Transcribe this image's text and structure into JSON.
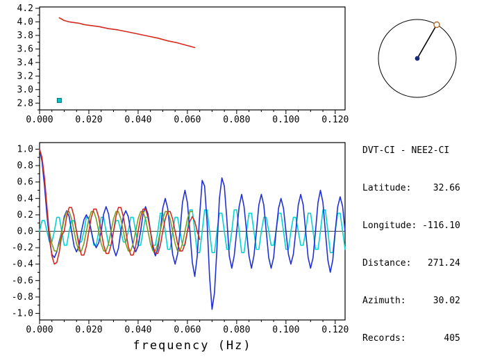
{
  "info": {
    "title": "DVT-CI - NEE2-CI",
    "lines": [
      "Latitude:    32.66",
      "Longitude: -116.10",
      "Distance:   271.24",
      "Azimuth:     30.02",
      "Records:       405"
    ]
  },
  "compass": {
    "azimuth_deg": 30.02,
    "circle_color": "#000000",
    "line_color": "#000000",
    "center_dot_color": "#1a2a7a",
    "edge_marker_color": "#b06820"
  },
  "chart_data": [
    {
      "id": "dispersion",
      "type": "line",
      "title": "",
      "xlabel": "",
      "ylabel": "",
      "xlim": [
        0,
        0.124
      ],
      "ylim": [
        2.7,
        4.22
      ],
      "xticks": [
        0,
        0.02,
        0.04,
        0.06,
        0.08,
        0.1,
        0.12
      ],
      "xtick_labels": [
        "0.000",
        "0.020",
        "0.040",
        "0.060",
        "0.080",
        "0.100",
        "0.120"
      ],
      "xminor_step": 0.005,
      "yticks": [
        2.8,
        3.0,
        3.2,
        3.4,
        3.6,
        3.8,
        4.0,
        4.2
      ],
      "ytick_labels": [
        "2.8",
        "3.0",
        "3.2",
        "3.4",
        "3.6",
        "3.8",
        "4.0",
        "4.2"
      ],
      "yminor_step": 0.1,
      "grid": false,
      "zero_line": false,
      "series": [
        {
          "name": "group-velocity-curve",
          "color": "#d42a1e",
          "x": [
            0.008,
            0.009,
            0.01,
            0.012,
            0.014,
            0.016,
            0.018,
            0.02,
            0.024,
            0.028,
            0.032,
            0.036,
            0.04,
            0.044,
            0.048,
            0.052,
            0.056,
            0.06,
            0.063
          ],
          "y": [
            4.06,
            4.04,
            4.02,
            4.0,
            3.99,
            3.98,
            3.96,
            3.95,
            3.93,
            3.9,
            3.88,
            3.85,
            3.82,
            3.79,
            3.76,
            3.72,
            3.69,
            3.65,
            3.62
          ]
        }
      ],
      "markers": [
        {
          "name": "picked-point",
          "shape": "square",
          "x": 0.008,
          "y": 2.84,
          "color": "#00c8c8",
          "edge": "#006868"
        }
      ]
    },
    {
      "id": "correlation",
      "type": "line",
      "title": "",
      "xlabel": "frequency (Hz)",
      "ylabel": "",
      "xlim": [
        0,
        0.124
      ],
      "ylim": [
        -1.08,
        1.08
      ],
      "xticks": [
        0,
        0.02,
        0.04,
        0.06,
        0.08,
        0.1,
        0.12
      ],
      "xtick_labels": [
        "0.000",
        "0.020",
        "0.040",
        "0.060",
        "0.080",
        "0.100",
        "0.120"
      ],
      "xminor_step": 0.005,
      "yticks": [
        -1.0,
        -0.8,
        -0.6,
        -0.4,
        -0.2,
        0.0,
        0.2,
        0.4,
        0.6,
        0.8,
        1.0
      ],
      "ytick_labels": [
        "-1.0",
        "-0.8",
        "-0.6",
        "-0.4",
        "-0.2",
        "0.0",
        "0.2",
        "0.4",
        "0.6",
        "0.8",
        "1.0"
      ],
      "yminor_step": 0.1,
      "grid": false,
      "zero_line": true,
      "series": [
        {
          "name": "waveform-cyan",
          "color": "#00d4d4",
          "x0": 0,
          "dx": 0.001,
          "values": [
            0,
            0.13,
            0.13,
            0,
            -0.13,
            -0.13,
            0,
            0.17,
            0.17,
            0,
            -0.17,
            -0.17,
            0,
            0.13,
            0.13,
            0,
            -0.13,
            -0.13,
            0,
            0.17,
            0.17,
            0,
            -0.17,
            -0.17,
            0,
            0.17,
            0.17,
            0,
            -0.17,
            -0.17,
            0,
            0.13,
            0.13,
            0,
            -0.13,
            -0.13,
            0,
            0.17,
            0.17,
            0,
            -0.17,
            -0.17,
            0,
            0.17,
            0.17,
            0,
            -0.17,
            -0.17,
            0,
            0.22,
            0.22,
            0,
            -0.22,
            -0.22,
            0,
            0.17,
            0.17,
            0,
            -0.17,
            -0.17,
            0,
            0.26,
            0.26,
            0,
            -0.26,
            -0.26,
            0,
            0.26,
            0.26,
            0,
            -0.26,
            -0.26,
            0,
            0.22,
            0.22,
            0,
            -0.22,
            -0.22,
            0,
            0.26,
            0.26,
            0,
            -0.26,
            -0.26,
            0,
            0.22,
            0.22,
            0,
            -0.22,
            -0.22,
            0,
            0.17,
            0.17,
            0,
            -0.17,
            -0.17,
            0,
            0.22,
            0.22,
            0,
            -0.22,
            -0.22,
            0,
            0.17,
            0.17,
            0,
            -0.17,
            -0.17,
            0,
            0.22,
            0.22,
            0,
            -0.22,
            -0.22,
            0,
            0.26,
            0.26,
            0,
            -0.26,
            -0.26,
            0,
            0.22,
            0.22,
            0,
            -0.22
          ]
        },
        {
          "name": "waveform-blue",
          "color": "#2030d8",
          "x0": 0,
          "dx": 0.001,
          "values": [
            1.0,
            0.85,
            0.55,
            0.2,
            -0.1,
            -0.28,
            -0.32,
            -0.25,
            -0.12,
            0.0,
            0.18,
            0.25,
            0.18,
            0.0,
            -0.18,
            -0.25,
            -0.18,
            0.0,
            0.14,
            0.2,
            0.14,
            0.0,
            -0.14,
            -0.2,
            -0.14,
            0.0,
            0.21,
            0.3,
            0.21,
            0.0,
            -0.21,
            -0.3,
            -0.21,
            0.0,
            0.18,
            0.25,
            0.18,
            0.0,
            -0.18,
            -0.25,
            -0.18,
            0.0,
            0.21,
            0.3,
            0.21,
            0.0,
            -0.21,
            -0.3,
            -0.21,
            0.0,
            0.28,
            0.4,
            0.28,
            0.0,
            -0.28,
            -0.4,
            -0.28,
            0.0,
            0.35,
            0.5,
            0.35,
            0.0,
            -0.38,
            -0.55,
            -0.3,
            0.2,
            0.62,
            0.55,
            0.1,
            -0.55,
            -0.95,
            -0.75,
            -0.2,
            0.4,
            0.65,
            0.55,
            0.15,
            -0.3,
            -0.45,
            -0.3,
            0.0,
            0.3,
            0.45,
            0.3,
            0.0,
            -0.3,
            -0.45,
            -0.3,
            0.0,
            0.32,
            0.45,
            0.32,
            0.0,
            -0.32,
            -0.45,
            -0.32,
            0.0,
            0.28,
            0.4,
            0.28,
            0.0,
            -0.28,
            -0.4,
            -0.28,
            0.0,
            0.32,
            0.45,
            0.32,
            0.0,
            -0.32,
            -0.45,
            -0.32,
            0.0,
            0.35,
            0.5,
            0.35,
            0.0,
            -0.35,
            -0.5,
            -0.35,
            0.0,
            0.3,
            0.42,
            0.3,
            0.0
          ]
        },
        {
          "name": "waveform-green",
          "color": "#76a01c",
          "x0": 0.004,
          "dx": 0.001,
          "values": [
            0.0,
            -0.15,
            -0.24,
            -0.24,
            -0.15,
            0.0,
            0.15,
            0.24,
            0.24,
            0.15,
            0.0,
            -0.15,
            -0.24,
            -0.24,
            -0.15,
            0.0,
            0.15,
            0.24,
            0.24,
            0.15,
            0.0,
            -0.15,
            -0.24,
            -0.24,
            -0.15,
            0.0,
            0.15,
            0.24,
            0.24,
            0.15,
            0.0,
            -0.15,
            -0.24,
            -0.24,
            -0.15,
            0.0,
            0.15,
            0.24,
            0.24,
            0.15,
            0.0,
            -0.15,
            -0.24,
            -0.24,
            -0.15,
            0.0,
            0.15,
            0.24,
            0.24,
            0.15,
            0.0,
            -0.15,
            -0.24,
            -0.24,
            -0.15,
            0.0,
            0.15,
            0.24,
            0.24
          ]
        },
        {
          "name": "waveform-red",
          "color": "#d42a1e",
          "x0": 0,
          "dx": 0.001,
          "values": [
            1.0,
            0.9,
            0.65,
            0.3,
            -0.05,
            -0.3,
            -0.4,
            -0.38,
            -0.25,
            -0.05,
            0.0,
            0.18,
            0.29,
            0.29,
            0.18,
            0.0,
            -0.18,
            -0.29,
            -0.29,
            -0.18,
            0.0,
            0.17,
            0.27,
            0.27,
            0.17,
            0.0,
            -0.17,
            -0.27,
            -0.27,
            -0.17,
            0.0,
            0.18,
            0.29,
            0.29,
            0.18,
            0.0,
            -0.18,
            -0.29,
            -0.29,
            -0.18,
            0.0,
            0.17,
            0.27,
            0.27,
            0.17,
            0.0,
            -0.17,
            -0.27,
            -0.27,
            -0.17,
            0.0,
            0.15,
            0.24,
            0.24,
            0.15,
            0.0,
            -0.15,
            -0.24,
            -0.24,
            -0.15,
            0.0,
            0.12,
            0.18,
            0.12,
            0.0,
            -0.1
          ]
        }
      ],
      "markers": []
    }
  ]
}
